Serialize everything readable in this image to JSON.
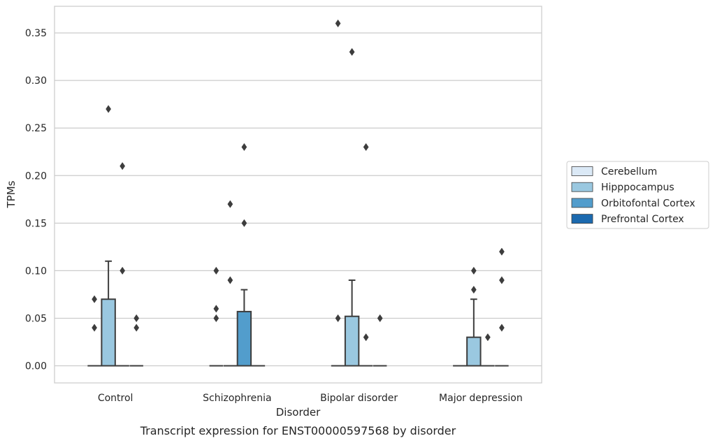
{
  "chart_data": {
    "type": "box",
    "title": "",
    "caption": "Transcript expression for ENST00000597568 by disorder",
    "xlabel": "Disorder",
    "ylabel": "TPMs",
    "ylim": [
      -0.018,
      0.378
    ],
    "yticks": [
      0.0,
      0.05,
      0.1,
      0.15,
      0.2,
      0.25,
      0.3,
      0.35
    ],
    "ytick_labels": [
      "0.00",
      "0.05",
      "0.10",
      "0.15",
      "0.20",
      "0.25",
      "0.30",
      "0.35"
    ],
    "grid": true,
    "legend_position": "right",
    "categories": [
      "Control",
      "Schizophrenia",
      "Bipolar disorder",
      "Major depression"
    ],
    "series": [
      {
        "name": "Cerebellum",
        "color": "#dbe9f6",
        "boxes": [
          {
            "q1": 0,
            "median": 0,
            "q3": 0,
            "whisker_low": 0,
            "whisker_high": 0,
            "outliers": [
              0.04,
              0.07
            ]
          },
          {
            "q1": 0,
            "median": 0,
            "q3": 0,
            "whisker_low": 0,
            "whisker_high": 0,
            "outliers": [
              0.05,
              0.06,
              0.1
            ]
          },
          {
            "q1": 0,
            "median": 0,
            "q3": 0,
            "whisker_low": 0,
            "whisker_high": 0,
            "outliers": [
              0.05,
              0.36
            ]
          },
          {
            "q1": 0,
            "median": 0,
            "q3": 0,
            "whisker_low": 0,
            "whisker_high": 0,
            "outliers": []
          }
        ]
      },
      {
        "name": "Hipppocampus",
        "color": "#9ac8e0",
        "boxes": [
          {
            "q1": 0,
            "median": 0,
            "q3": 0.07,
            "whisker_low": 0,
            "whisker_high": 0.11,
            "outliers": [
              0.27
            ]
          },
          {
            "q1": 0,
            "median": 0,
            "q3": 0,
            "whisker_low": 0,
            "whisker_high": 0,
            "outliers": [
              0.09,
              0.17
            ]
          },
          {
            "q1": 0,
            "median": 0,
            "q3": 0.052,
            "whisker_low": 0,
            "whisker_high": 0.09,
            "outliers": [
              0.33
            ]
          },
          {
            "q1": 0,
            "median": 0,
            "q3": 0.03,
            "whisker_low": 0,
            "whisker_high": 0.07,
            "outliers": [
              0.08,
              0.1
            ]
          }
        ]
      },
      {
        "name": "Orbitofontal Cortex",
        "color": "#529dcc",
        "boxes": [
          {
            "q1": 0,
            "median": 0,
            "q3": 0,
            "whisker_low": 0,
            "whisker_high": 0,
            "outliers": [
              0.1,
              0.21
            ]
          },
          {
            "q1": 0,
            "median": 0,
            "q3": 0.057,
            "whisker_low": 0,
            "whisker_high": 0.08,
            "outliers": [
              0.15,
              0.23
            ]
          },
          {
            "q1": 0,
            "median": 0,
            "q3": 0,
            "whisker_low": 0,
            "whisker_high": 0,
            "outliers": [
              0.03,
              0.23
            ]
          },
          {
            "q1": 0,
            "median": 0,
            "q3": 0,
            "whisker_low": 0,
            "whisker_high": 0,
            "outliers": [
              0.03
            ]
          }
        ]
      },
      {
        "name": "Prefrontal Cortex",
        "color": "#1c6aaf",
        "boxes": [
          {
            "q1": 0,
            "median": 0,
            "q3": 0,
            "whisker_low": 0,
            "whisker_high": 0,
            "outliers": [
              0.04,
              0.05
            ]
          },
          {
            "q1": 0,
            "median": 0,
            "q3": 0,
            "whisker_low": 0,
            "whisker_high": 0,
            "outliers": []
          },
          {
            "q1": 0,
            "median": 0,
            "q3": 0,
            "whisker_low": 0,
            "whisker_high": 0,
            "outliers": [
              0.05
            ]
          },
          {
            "q1": 0,
            "median": 0,
            "q3": 0,
            "whisker_low": 0,
            "whisker_high": 0,
            "outliers": [
              0.04,
              0.09,
              0.12
            ]
          }
        ]
      }
    ]
  }
}
